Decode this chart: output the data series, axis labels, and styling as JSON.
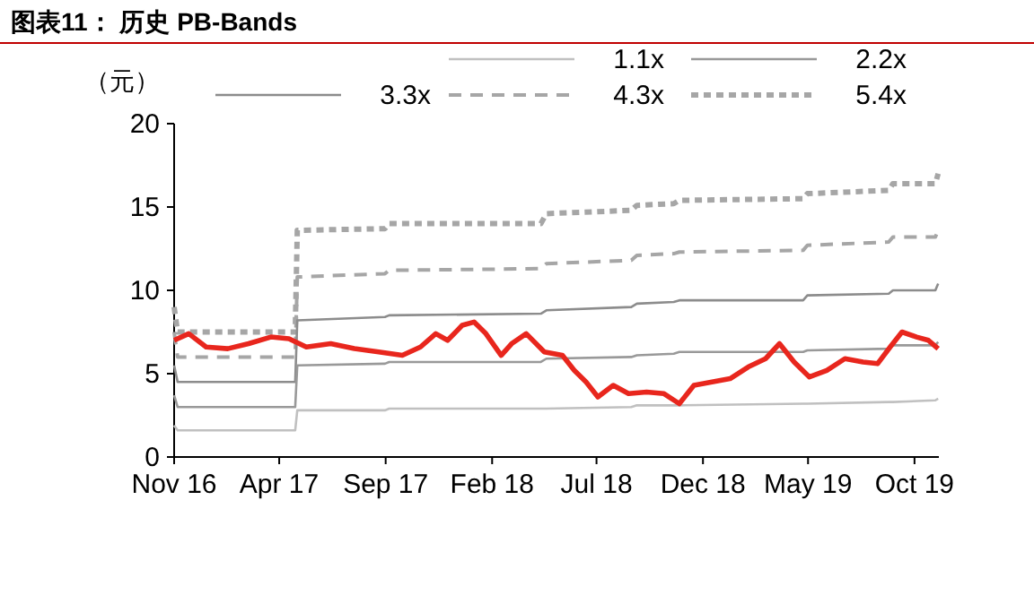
{
  "chart_data": {
    "type": "line",
    "title": "图表11： 历史 PB-Bands",
    "ylabel": "（元）",
    "xlim": [
      "2016-11-01",
      "2019-11-05"
    ],
    "xticks": [
      {
        "value": "2016-11-01",
        "label": "Nov 16"
      },
      {
        "value": "2017-04-01",
        "label": "Apr 17"
      },
      {
        "value": "2017-09-01",
        "label": "Sep 17"
      },
      {
        "value": "2018-02-01",
        "label": "Feb 18"
      },
      {
        "value": "2018-07-01",
        "label": "Jul 18"
      },
      {
        "value": "2018-12-01",
        "label": "Dec 18"
      },
      {
        "value": "2019-05-01",
        "label": "May 19"
      },
      {
        "value": "2019-10-01",
        "label": "Oct 19"
      }
    ],
    "ylim": [
      0,
      20
    ],
    "yticks": [
      0,
      5,
      10,
      15,
      20
    ],
    "grid": false,
    "legend": "top",
    "series": [
      {
        "color": "#e8261d",
        "line_style": "solid",
        "x": [
          "2016-11-01",
          "2016-11-22",
          "2016-12-17",
          "2017-01-17",
          "2017-02-16",
          "2017-03-20",
          "2017-04-15",
          "2017-05-10",
          "2017-06-14",
          "2017-07-18",
          "2017-08-22",
          "2017-09-25",
          "2017-10-21",
          "2017-11-12",
          "2017-11-29",
          "2017-12-20",
          "2018-01-06",
          "2018-01-23",
          "2018-02-14",
          "2018-03-01",
          "2018-03-22",
          "2018-04-17",
          "2018-05-13",
          "2018-05-30",
          "2018-06-16",
          "2018-07-03",
          "2018-07-25",
          "2018-08-16",
          "2018-09-11",
          "2018-10-06",
          "2018-10-28",
          "2018-11-18",
          "2018-12-14",
          "2019-01-09",
          "2019-02-04",
          "2019-03-01",
          "2019-03-21",
          "2019-04-11",
          "2019-05-03",
          "2019-05-28",
          "2019-06-23",
          "2019-07-19",
          "2019-08-09",
          "2019-08-27",
          "2019-09-13",
          "2019-10-04",
          "2019-10-21",
          "2019-11-04"
        ],
        "values": [
          7.0,
          7.4,
          6.6,
          6.5,
          6.8,
          7.2,
          7.1,
          6.6,
          6.8,
          6.5,
          6.3,
          6.1,
          6.6,
          7.4,
          7.0,
          7.9,
          8.1,
          7.4,
          6.1,
          6.8,
          7.4,
          6.3,
          6.1,
          5.2,
          4.5,
          3.6,
          4.3,
          3.8,
          3.9,
          3.8,
          3.2,
          4.3,
          4.5,
          4.7,
          5.4,
          5.9,
          6.8,
          5.7,
          4.8,
          5.2,
          5.9,
          5.7,
          5.6,
          6.6,
          7.5,
          7.2,
          7.0,
          6.5
        ]
      },
      {
        "name": "1.1x",
        "color": "#c0c0c0",
        "line_style": "solid",
        "x": [
          "2016-11-01",
          "2016-11-06",
          "2017-04-24",
          "2017-04-27",
          "2017-08-31",
          "2017-09-06",
          "2018-04-12",
          "2018-04-20",
          "2018-08-20",
          "2018-08-28",
          "2018-10-20",
          "2018-10-28",
          "2019-04-24",
          "2019-04-30",
          "2019-08-25",
          "2019-08-31",
          "2019-10-31",
          "2019-11-04"
        ],
        "values": [
          1.9,
          1.6,
          1.6,
          2.8,
          2.8,
          2.9,
          2.9,
          2.9,
          3.0,
          3.1,
          3.1,
          3.1,
          3.2,
          3.2,
          3.3,
          3.3,
          3.4,
          3.5
        ]
      },
      {
        "name": "2.2x",
        "color": "#999999",
        "line_style": "solid",
        "x": [
          "2016-11-01",
          "2016-11-06",
          "2017-04-24",
          "2017-04-27",
          "2017-08-31",
          "2017-09-06",
          "2018-04-12",
          "2018-04-20",
          "2018-08-20",
          "2018-08-28",
          "2018-10-20",
          "2018-10-28",
          "2019-04-24",
          "2019-04-30",
          "2019-08-25",
          "2019-08-31",
          "2019-10-31",
          "2019-11-04"
        ],
        "values": [
          3.7,
          3.0,
          3.0,
          5.5,
          5.6,
          5.7,
          5.7,
          5.9,
          6.0,
          6.1,
          6.2,
          6.3,
          6.3,
          6.4,
          6.5,
          6.7,
          6.7,
          6.9
        ]
      },
      {
        "name": "3.3x",
        "color": "#8c8c8c",
        "line_style": "solid",
        "x": [
          "2016-11-01",
          "2016-11-06",
          "2017-04-24",
          "2017-04-27",
          "2017-08-31",
          "2017-09-06",
          "2018-04-12",
          "2018-04-20",
          "2018-08-20",
          "2018-08-28",
          "2018-10-20",
          "2018-10-28",
          "2019-04-24",
          "2019-04-30",
          "2019-08-25",
          "2019-08-31",
          "2019-10-31",
          "2019-11-04"
        ],
        "values": [
          5.5,
          4.5,
          4.5,
          8.2,
          8.4,
          8.5,
          8.6,
          8.8,
          9.0,
          9.2,
          9.3,
          9.4,
          9.4,
          9.7,
          9.8,
          10.0,
          10.0,
          10.4
        ]
      },
      {
        "name": "4.3x",
        "color": "#a6a6a6",
        "line_style": "dashed",
        "x": [
          "2016-11-01",
          "2016-11-06",
          "2017-04-24",
          "2017-04-27",
          "2017-08-31",
          "2017-09-06",
          "2018-04-12",
          "2018-04-20",
          "2018-08-20",
          "2018-08-28",
          "2018-10-20",
          "2018-10-28",
          "2019-04-24",
          "2019-04-30",
          "2019-08-25",
          "2019-08-31",
          "2019-10-31",
          "2019-11-04"
        ],
        "values": [
          7.5,
          6.0,
          6.0,
          10.8,
          11.0,
          11.2,
          11.3,
          11.6,
          11.8,
          12.1,
          12.2,
          12.3,
          12.4,
          12.7,
          12.9,
          13.2,
          13.2,
          13.6
        ]
      },
      {
        "name": "5.4x",
        "color": "#a6a6a6",
        "line_style": "dotted",
        "x": [
          "2016-11-01",
          "2016-11-06",
          "2017-04-24",
          "2017-04-27",
          "2017-08-31",
          "2017-09-06",
          "2018-04-12",
          "2018-04-20",
          "2018-08-20",
          "2018-08-28",
          "2018-10-20",
          "2018-10-28",
          "2019-04-24",
          "2019-04-30",
          "2019-08-25",
          "2019-08-31",
          "2019-10-31",
          "2019-11-04"
        ],
        "values": [
          9.0,
          7.5,
          7.5,
          13.6,
          13.7,
          14.0,
          14.0,
          14.6,
          14.8,
          15.1,
          15.2,
          15.4,
          15.5,
          15.8,
          16.0,
          16.4,
          16.4,
          17.0
        ]
      }
    ]
  }
}
